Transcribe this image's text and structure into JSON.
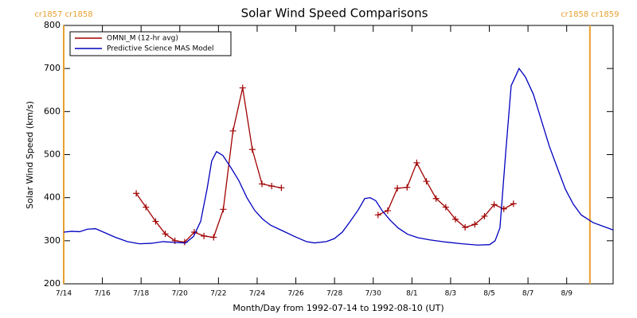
{
  "chart_data": {
    "type": "line",
    "title": "Solar Wind Speed Comparisons",
    "xlabel": "Month/Day from 1992-07-14 to 1992-08-10 (UT)",
    "ylabel": "Solar Wind Speed (km/s)",
    "xlim": [
      0,
      28.4
    ],
    "ylim": [
      200,
      800
    ],
    "xticks": [
      {
        "value": 0,
        "label": "7/14"
      },
      {
        "value": 2,
        "label": "7/16"
      },
      {
        "value": 4,
        "label": "7/18"
      },
      {
        "value": 6,
        "label": "7/20"
      },
      {
        "value": 8,
        "label": "7/22"
      },
      {
        "value": 10,
        "label": "7/24"
      },
      {
        "value": 12,
        "label": "7/26"
      },
      {
        "value": 14,
        "label": "7/28"
      },
      {
        "value": 16,
        "label": "7/30"
      },
      {
        "value": 18,
        "label": "8/1"
      },
      {
        "value": 20,
        "label": "8/3"
      },
      {
        "value": 22,
        "label": "8/5"
      },
      {
        "value": 24,
        "label": "8/7"
      },
      {
        "value": 26,
        "label": "8/9"
      }
    ],
    "yticks": [
      200,
      300,
      400,
      500,
      600,
      700,
      800
    ],
    "legend": "upper left",
    "markers": [
      {
        "x": 0,
        "label": "cr1857 cr1858",
        "color": "#e8a030"
      },
      {
        "x": 27.2,
        "label": "cr1858 cr1859",
        "color": "#e8a030"
      }
    ],
    "series": [
      {
        "name": "OMNI_M (12-hr avg)",
        "color": "#a00000",
        "marker": "+",
        "x": [
          3.75,
          4.25,
          4.75,
          5.25,
          5.75,
          6.25,
          6.75,
          7.25,
          7.75,
          8.25,
          8.75,
          9.25,
          9.75,
          10.25,
          10.75,
          11.25,
          null,
          16.25,
          16.75,
          17.25,
          17.75,
          18.25,
          18.75,
          19.25,
          19.75,
          20.25,
          20.75,
          21.25,
          21.75,
          22.25,
          22.75,
          23.25
        ],
        "values": [
          410,
          378,
          345,
          316,
          300,
          297,
          320,
          311,
          308,
          373,
          555,
          655,
          512,
          432,
          427,
          423,
          null,
          360,
          370,
          422,
          424,
          481,
          438,
          398,
          378,
          350,
          331,
          338,
          357,
          384,
          374,
          386
        ]
      },
      {
        "name": "Predictive Science MAS Model",
        "color": "#0000c0",
        "x": [
          0,
          0.41,
          0.82,
          1.23,
          1.65,
          2.06,
          2.67,
          3.29,
          3.91,
          4.53,
          5.14,
          5.76,
          6.3,
          6.71,
          7.08,
          7.41,
          7.65,
          7.9,
          8.23,
          8.64,
          9.05,
          9.47,
          9.88,
          10.29,
          10.7,
          11.32,
          11.93,
          12.55,
          12.96,
          13.58,
          13.99,
          14.4,
          14.81,
          15.23,
          15.56,
          15.84,
          16.13,
          16.46,
          16.87,
          17.28,
          17.78,
          18.31,
          18.93,
          19.75,
          20.58,
          21.4,
          22.02,
          22.3,
          22.55,
          22.84,
          23.13,
          23.54,
          23.87,
          24.28,
          24.69,
          25.1,
          25.51,
          25.93,
          26.34,
          26.75,
          27.37,
          27.98,
          28.4
        ],
        "values": [
          320,
          322,
          321,
          327,
          328,
          320,
          308,
          298,
          293,
          294,
          298,
          296,
          295,
          310,
          345,
          420,
          485,
          507,
          498,
          470,
          440,
          400,
          370,
          350,
          336,
          323,
          310,
          298,
          295,
          298,
          305,
          320,
          345,
          372,
          398,
          400,
          393,
          370,
          348,
          330,
          315,
          307,
          302,
          297,
          293,
          290,
          291,
          300,
          330,
          500,
          660,
          700,
          680,
          640,
          580,
          520,
          470,
          420,
          385,
          360,
          342,
          332,
          325
        ]
      }
    ]
  }
}
